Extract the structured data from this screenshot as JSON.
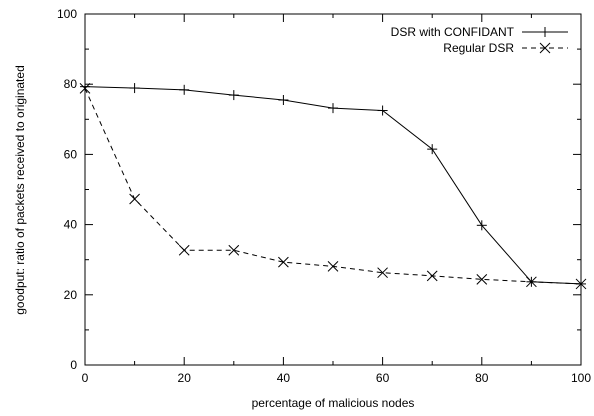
{
  "chart_data": {
    "type": "line",
    "title": "",
    "xlabel": "percentage of malicious nodes",
    "ylabel": "goodput: ratio of packets received to originated",
    "xlim": [
      0,
      100
    ],
    "ylim": [
      0,
      100
    ],
    "xticks": [
      "0",
      "20",
      "40",
      "60",
      "80",
      "100"
    ],
    "yticks": [
      "0",
      "20",
      "40",
      "60",
      "80",
      "100"
    ],
    "grid": false,
    "legend_position": "top-right",
    "x": [
      0,
      10,
      20,
      30,
      40,
      50,
      60,
      70,
      80,
      90,
      100
    ],
    "series": [
      {
        "name": "DSR with CONFIDANT",
        "marker": "plus",
        "line_style": "solid",
        "color": "#000000",
        "values": [
          79.3,
          78.9,
          78.4,
          76.9,
          75.5,
          73.2,
          72.5,
          61.5,
          39.8,
          23.7,
          23.1
        ]
      },
      {
        "name": "Regular DSR",
        "marker": "cross",
        "line_style": "dashed",
        "color": "#000000",
        "values": [
          78.8,
          47.3,
          32.7,
          32.7,
          29.3,
          28.1,
          26.3,
          25.4,
          24.4,
          23.7,
          23.1
        ]
      }
    ]
  }
}
